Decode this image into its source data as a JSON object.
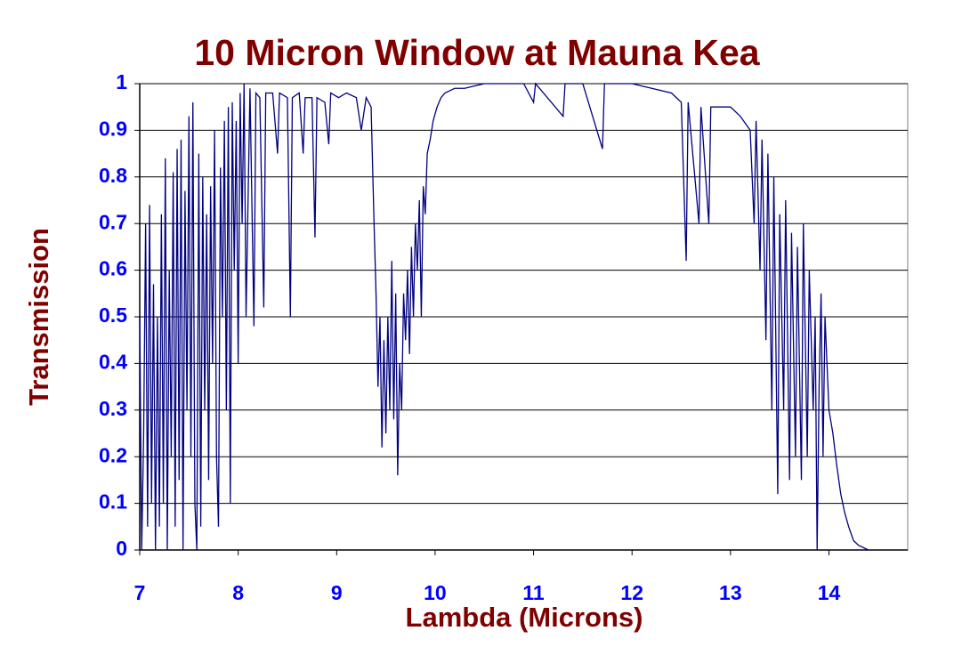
{
  "chart_data": {
    "type": "line",
    "title": "10 Micron Window at Mauna Kea",
    "x_label": "Lambda (Microns)",
    "y_label": "Transmission",
    "xlim": [
      7,
      14.8
    ],
    "ylim": [
      0,
      1
    ],
    "xticks": [
      7,
      8,
      9,
      10,
      11,
      12,
      13,
      14
    ],
    "yticks": [
      0,
      0.1,
      0.2,
      0.3,
      0.4,
      0.5,
      0.6,
      0.7,
      0.8,
      0.9,
      1
    ],
    "grid": true,
    "series": [
      {
        "color": "#000080",
        "x": [
          7.0,
          7.02,
          7.04,
          7.06,
          7.08,
          7.1,
          7.12,
          7.14,
          7.16,
          7.18,
          7.2,
          7.22,
          7.24,
          7.26,
          7.28,
          7.3,
          7.32,
          7.34,
          7.36,
          7.38,
          7.4,
          7.42,
          7.44,
          7.46,
          7.48,
          7.5,
          7.52,
          7.54,
          7.56,
          7.58,
          7.6,
          7.62,
          7.64,
          7.66,
          7.68,
          7.7,
          7.72,
          7.74,
          7.76,
          7.78,
          7.8,
          7.82,
          7.84,
          7.86,
          7.88,
          7.9,
          7.92,
          7.94,
          7.96,
          7.98,
          8.0,
          8.02,
          8.04,
          8.06,
          8.08,
          8.12,
          8.16,
          8.18,
          8.22,
          8.26,
          8.28,
          8.35,
          8.4,
          8.42,
          8.5,
          8.53,
          8.55,
          8.62,
          8.66,
          8.68,
          8.75,
          8.78,
          8.8,
          8.88,
          8.92,
          8.94,
          9.02,
          9.1,
          9.2,
          9.25,
          9.3,
          9.35,
          9.38,
          9.4,
          9.42,
          9.44,
          9.46,
          9.48,
          9.5,
          9.52,
          9.54,
          9.56,
          9.58,
          9.6,
          9.62,
          9.64,
          9.66,
          9.68,
          9.7,
          9.72,
          9.74,
          9.76,
          9.78,
          9.8,
          9.82,
          9.84,
          9.86,
          9.88,
          9.9,
          9.92,
          9.95,
          9.98,
          10.02,
          10.06,
          10.1,
          10.2,
          10.3,
          10.5,
          10.7,
          10.9,
          11.0,
          11.02,
          11.3,
          11.32,
          11.5,
          11.7,
          11.72,
          12.0,
          12.2,
          12.4,
          12.5,
          12.55,
          12.57,
          12.68,
          12.7,
          12.78,
          12.8,
          13.0,
          13.1,
          13.2,
          13.24,
          13.26,
          13.3,
          13.32,
          13.36,
          13.38,
          13.42,
          13.44,
          13.48,
          13.5,
          13.54,
          13.56,
          13.6,
          13.62,
          13.66,
          13.68,
          13.72,
          13.74,
          13.78,
          13.8,
          13.84,
          13.86,
          13.88,
          13.9,
          13.92,
          13.94,
          13.96,
          14.0,
          14.04,
          14.08,
          14.12,
          14.16,
          14.2,
          14.25,
          14.3,
          14.4
        ],
        "values": [
          0.5,
          0.0,
          0.25,
          0.7,
          0.05,
          0.74,
          0.1,
          0.57,
          0.0,
          0.5,
          0.05,
          0.72,
          0.1,
          0.84,
          0.0,
          0.6,
          0.2,
          0.81,
          0.05,
          0.86,
          0.15,
          0.88,
          0.0,
          0.77,
          0.3,
          0.93,
          0.2,
          0.96,
          0.1,
          0.0,
          0.85,
          0.05,
          0.8,
          0.3,
          0.72,
          0.15,
          0.78,
          0.4,
          0.9,
          0.2,
          0.05,
          0.82,
          0.5,
          0.92,
          0.3,
          0.95,
          0.1,
          0.96,
          0.6,
          0.92,
          0.4,
          0.98,
          0.7,
          1.0,
          0.5,
          0.99,
          0.48,
          0.98,
          0.97,
          0.52,
          0.98,
          0.98,
          0.85,
          0.98,
          0.97,
          0.5,
          0.97,
          0.98,
          0.85,
          0.97,
          0.97,
          0.67,
          0.97,
          0.96,
          0.87,
          0.98,
          0.97,
          0.98,
          0.97,
          0.9,
          0.97,
          0.95,
          0.7,
          0.55,
          0.35,
          0.5,
          0.22,
          0.45,
          0.25,
          0.5,
          0.3,
          0.62,
          0.28,
          0.55,
          0.16,
          0.4,
          0.3,
          0.55,
          0.45,
          0.6,
          0.42,
          0.65,
          0.5,
          0.7,
          0.6,
          0.75,
          0.5,
          0.78,
          0.72,
          0.85,
          0.88,
          0.92,
          0.95,
          0.97,
          0.98,
          0.99,
          0.99,
          1.0,
          1.0,
          1.0,
          0.96,
          1.0,
          0.93,
          1.0,
          1.0,
          0.86,
          1.0,
          1.0,
          0.99,
          0.98,
          0.96,
          0.62,
          0.96,
          0.7,
          0.95,
          0.7,
          0.95,
          0.95,
          0.93,
          0.9,
          0.7,
          0.92,
          0.6,
          0.88,
          0.45,
          0.85,
          0.3,
          0.8,
          0.12,
          0.72,
          0.3,
          0.75,
          0.15,
          0.68,
          0.2,
          0.65,
          0.15,
          0.7,
          0.2,
          0.6,
          0.3,
          0.5,
          0.0,
          0.35,
          0.55,
          0.2,
          0.5,
          0.3,
          0.25,
          0.18,
          0.12,
          0.08,
          0.05,
          0.02,
          0.01,
          0.0
        ]
      }
    ]
  }
}
